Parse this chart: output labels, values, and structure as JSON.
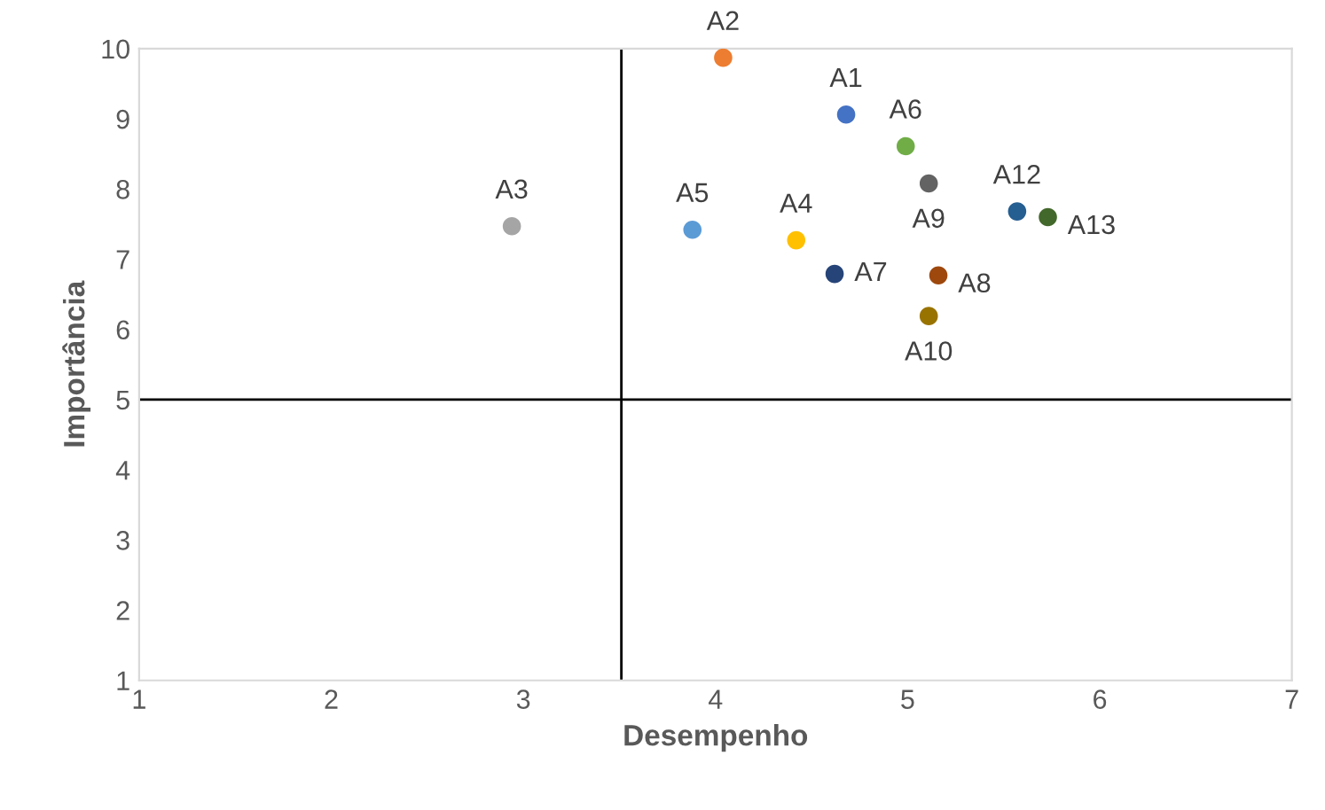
{
  "chart_data": {
    "type": "scatter",
    "xlabel": "Desempenho",
    "ylabel": "Importância",
    "xlim": [
      1,
      7
    ],
    "ylim": [
      1,
      10
    ],
    "xticks": [
      1,
      2,
      3,
      4,
      5,
      6,
      7
    ],
    "yticks": [
      1,
      2,
      3,
      4,
      5,
      6,
      7,
      8,
      9,
      10
    ],
    "grid": false,
    "marker": "circle",
    "legend": false,
    "series": [
      {
        "name": "A1",
        "color": "#4472c4",
        "x": [
          4.68
        ],
        "values": [
          9.06
        ]
      },
      {
        "name": "A2",
        "color": "#ed7d31",
        "x": [
          4.04
        ],
        "values": [
          9.87
        ]
      },
      {
        "name": "A3",
        "color": "#a5a5a5",
        "x": [
          2.94
        ],
        "values": [
          7.47
        ]
      },
      {
        "name": "A4",
        "color": "#ffc000",
        "x": [
          4.42
        ],
        "values": [
          7.27
        ]
      },
      {
        "name": "A5",
        "color": "#5b9bd5",
        "x": [
          3.88
        ],
        "values": [
          7.42
        ]
      },
      {
        "name": "A6",
        "color": "#70ad47",
        "x": [
          4.99
        ],
        "values": [
          8.61
        ]
      },
      {
        "name": "A7",
        "color": "#264478",
        "x": [
          4.62
        ],
        "values": [
          6.79
        ]
      },
      {
        "name": "A8",
        "color": "#9e480e",
        "x": [
          5.16
        ],
        "values": [
          6.77
        ]
      },
      {
        "name": "A9",
        "color": "#636363",
        "x": [
          5.11
        ],
        "values": [
          8.08
        ]
      },
      {
        "name": "A10",
        "color": "#997300",
        "x": [
          5.11
        ],
        "values": [
          6.19
        ]
      },
      {
        "name": "A12",
        "color": "#255e91",
        "x": [
          5.57
        ],
        "values": [
          7.68
        ]
      },
      {
        "name": "A13",
        "color": "#43682b",
        "x": [
          5.73
        ],
        "values": [
          7.6
        ]
      }
    ],
    "ref_lines": [
      {
        "axis": "x",
        "value": 3.51,
        "color": "#000000"
      },
      {
        "axis": "y",
        "value": 5,
        "color": "#000000"
      }
    ]
  }
}
